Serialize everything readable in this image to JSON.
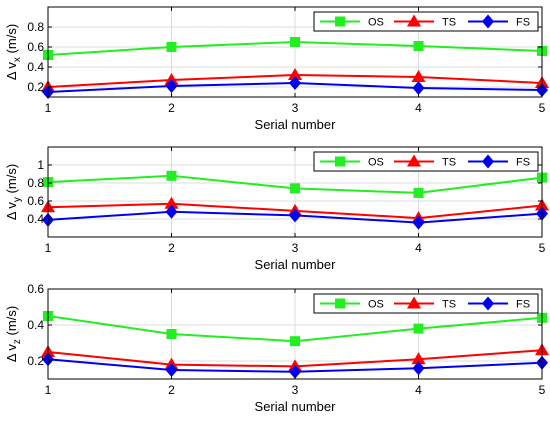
{
  "chart_data": [
    {
      "type": "line",
      "x": [
        1,
        2,
        3,
        4,
        5
      ],
      "xticks": [
        "1",
        "2",
        "3",
        "4",
        "5"
      ],
      "xlabel": "Serial number",
      "ylabel_main": "Δ v",
      "ylabel_sub": "x",
      "ylabel_unit": " (m/s)",
      "ylim": [
        0.1,
        1.0
      ],
      "yticks": [
        0.2,
        0.4,
        0.6,
        0.8
      ],
      "ytick_labels": [
        "0.2",
        "0.4",
        "0.6",
        "0.8"
      ],
      "grid": true,
      "legend_position": "top-right",
      "series": [
        {
          "name": "OS",
          "color": "#22ee22",
          "marker": "square",
          "values": [
            0.52,
            0.6,
            0.65,
            0.61,
            0.56
          ]
        },
        {
          "name": "TS",
          "color": "#ff0000",
          "marker": "triangle",
          "values": [
            0.2,
            0.27,
            0.32,
            0.3,
            0.24
          ]
        },
        {
          "name": "FS",
          "color": "#0000ee",
          "marker": "diamond",
          "values": [
            0.15,
            0.21,
            0.24,
            0.19,
            0.17
          ]
        }
      ]
    },
    {
      "type": "line",
      "x": [
        1,
        2,
        3,
        4,
        5
      ],
      "xticks": [
        "1",
        "2",
        "3",
        "4",
        "5"
      ],
      "xlabel": "Serial number",
      "ylabel_main": "Δ v",
      "ylabel_sub": "y",
      "ylabel_unit": " (m/s)",
      "ylim": [
        0.2,
        1.2
      ],
      "yticks": [
        0.4,
        0.6,
        0.8,
        1.0
      ],
      "ytick_labels": [
        "0.4",
        "0.6",
        "0.8",
        "1"
      ],
      "grid": true,
      "legend_position": "top-right",
      "series": [
        {
          "name": "OS",
          "color": "#22ee22",
          "marker": "square",
          "values": [
            0.81,
            0.88,
            0.74,
            0.69,
            0.86
          ]
        },
        {
          "name": "TS",
          "color": "#ff0000",
          "marker": "triangle",
          "values": [
            0.53,
            0.57,
            0.49,
            0.41,
            0.55
          ]
        },
        {
          "name": "FS",
          "color": "#0000ee",
          "marker": "diamond",
          "values": [
            0.39,
            0.48,
            0.44,
            0.36,
            0.46
          ]
        }
      ]
    },
    {
      "type": "line",
      "x": [
        1,
        2,
        3,
        4,
        5
      ],
      "xticks": [
        "1",
        "2",
        "3",
        "4",
        "5"
      ],
      "xlabel": "Serial number",
      "ylabel_main": "Δ v",
      "ylabel_sub": "z",
      "ylabel_unit": " (m/s)",
      "ylim": [
        0.1,
        0.6
      ],
      "yticks": [
        0.2,
        0.4,
        0.6
      ],
      "ytick_labels": [
        "0.2",
        "0.4",
        "0.6"
      ],
      "grid": true,
      "legend_position": "top-right",
      "series": [
        {
          "name": "OS",
          "color": "#22ee22",
          "marker": "square",
          "values": [
            0.45,
            0.35,
            0.31,
            0.38,
            0.44
          ]
        },
        {
          "name": "TS",
          "color": "#ff0000",
          "marker": "triangle",
          "values": [
            0.25,
            0.18,
            0.17,
            0.21,
            0.26
          ]
        },
        {
          "name": "FS",
          "color": "#0000ee",
          "marker": "diamond",
          "values": [
            0.21,
            0.15,
            0.14,
            0.16,
            0.19
          ]
        }
      ]
    }
  ]
}
